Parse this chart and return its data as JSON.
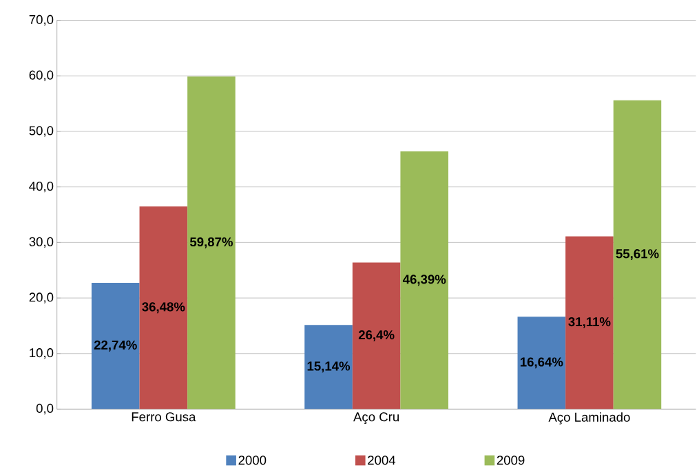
{
  "chart_data": {
    "type": "bar",
    "categories": [
      "Ferro Gusa",
      "Aço Cru",
      "Aço Laminado"
    ],
    "series": [
      {
        "name": "2000",
        "color": "#4f81bd",
        "values": [
          22.74,
          15.14,
          16.64
        ],
        "value_labels": [
          "22,74%",
          "15,14%",
          "16,64%"
        ]
      },
      {
        "name": "2004",
        "color": "#c0504d",
        "values": [
          36.48,
          26.4,
          31.11
        ],
        "value_labels": [
          "36,48%",
          "26,4%",
          "31,11%"
        ]
      },
      {
        "name": "2009",
        "color": "#9bbb59",
        "values": [
          59.87,
          46.39,
          55.61
        ],
        "value_labels": [
          "59,87%",
          "46,39%",
          "55,61%"
        ]
      }
    ],
    "ylim": [
      0,
      70
    ],
    "yticks": [
      {
        "value": 0,
        "label": "0,0"
      },
      {
        "value": 10,
        "label": "10,0"
      },
      {
        "value": 20,
        "label": "20,0"
      },
      {
        "value": 30,
        "label": "30,0"
      },
      {
        "value": 40,
        "label": "40,0"
      },
      {
        "value": 50,
        "label": "50,0"
      },
      {
        "value": 60,
        "label": "60,0"
      },
      {
        "value": 70,
        "label": "70,0"
      }
    ],
    "grid": "y",
    "legend": "bottom"
  }
}
